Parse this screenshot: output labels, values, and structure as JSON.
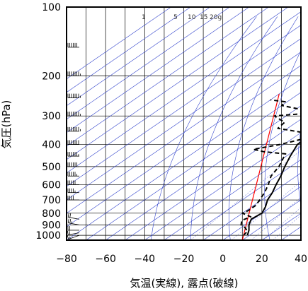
{
  "chart_data": {
    "type": "line",
    "xlabel": "気温(実線), 露点(破線)",
    "ylabel": "気圧(hPa)",
    "xlim": [
      -80,
      40
    ],
    "ylim": [
      1050,
      100
    ],
    "x_ticks": [
      -80,
      -60,
      -40,
      -20,
      0,
      20,
      40
    ],
    "x_tick_labels": [
      "−80",
      "−60",
      "−40",
      "−20",
      "0",
      "20",
      "40"
    ],
    "y_ticks": [
      100,
      200,
      300,
      400,
      500,
      600,
      700,
      800,
      900,
      1000
    ],
    "y_tick_labels": [
      "100",
      "200",
      "300",
      "400",
      "500",
      "600",
      "700",
      "800",
      "900",
      "1000"
    ],
    "mixing_ratio_labels": [
      "1",
      "5",
      "10",
      "15",
      "20g"
    ],
    "mixing_ratio_values": [
      1,
      5,
      10,
      15,
      20
    ],
    "colors": {
      "grid": "#000000",
      "isotherm": "#3344cc",
      "adiabat": "#3344cc",
      "reference_line": "#ff0000",
      "profile": "#000000",
      "frame": "#000000"
    },
    "series": [
      {
        "name": "気温",
        "style": "solid",
        "points": [
          {
            "p": 1000,
            "t": 9
          },
          {
            "p": 950,
            "t": 6
          },
          {
            "p": 900,
            "t": 2
          },
          {
            "p": 850,
            "t": -1
          },
          {
            "p": 800,
            "t": 0
          },
          {
            "p": 750,
            "t": -3
          },
          {
            "p": 700,
            "t": -7
          },
          {
            "p": 650,
            "t": -10
          },
          {
            "p": 600,
            "t": -14
          },
          {
            "p": 550,
            "t": -18
          },
          {
            "p": 500,
            "t": -23
          },
          {
            "p": 450,
            "t": -28
          },
          {
            "p": 400,
            "t": -33
          },
          {
            "p": 370,
            "t": -33
          },
          {
            "p": 350,
            "t": -37
          },
          {
            "p": 300,
            "t": -44
          },
          {
            "p": 250,
            "t": -51
          },
          {
            "p": 200,
            "t": -56
          },
          {
            "p": 180,
            "t": -60
          },
          {
            "p": 150,
            "t": -61
          },
          {
            "p": 130,
            "t": -60
          },
          {
            "p": 115,
            "t": -63
          },
          {
            "p": 100,
            "t": -62
          }
        ]
      },
      {
        "name": "露点",
        "style": "dashed",
        "points": [
          {
            "p": 1000,
            "t": 7
          },
          {
            "p": 960,
            "t": 6
          },
          {
            "p": 925,
            "t": 2
          },
          {
            "p": 900,
            "t": -2
          },
          {
            "p": 860,
            "t": -5
          },
          {
            "p": 830,
            "t": -3
          },
          {
            "p": 800,
            "t": -10
          },
          {
            "p": 780,
            "t": -9
          },
          {
            "p": 740,
            "t": -9
          },
          {
            "p": 700,
            "t": -11
          },
          {
            "p": 650,
            "t": -14
          },
          {
            "p": 600,
            "t": -18
          },
          {
            "p": 550,
            "t": -23
          },
          {
            "p": 500,
            "t": -26
          },
          {
            "p": 460,
            "t": -30
          },
          {
            "p": 440,
            "t": -32
          },
          {
            "p": 430,
            "t": -45
          },
          {
            "p": 420,
            "t": -52
          },
          {
            "p": 400,
            "t": -42
          },
          {
            "p": 380,
            "t": -35
          },
          {
            "p": 360,
            "t": -33
          },
          {
            "p": 340,
            "t": -55
          },
          {
            "p": 320,
            "t": -56
          },
          {
            "p": 300,
            "t": -66
          },
          {
            "p": 290,
            "t": -47
          },
          {
            "p": 270,
            "t": -70
          },
          {
            "p": 260,
            "t": -71
          },
          {
            "p": 255,
            "t": -80
          }
        ]
      }
    ],
    "reference_line": [
      {
        "p": 1050,
        "t": 10
      },
      {
        "p": 240,
        "t": -80
      }
    ],
    "wind_barbs": [
      {
        "p": 1000,
        "speed_kt": 15,
        "dir": 250
      },
      {
        "p": 975,
        "speed_kt": 20,
        "dir": 260
      },
      {
        "p": 950,
        "speed_kt": 20,
        "dir": 270
      },
      {
        "p": 900,
        "speed_kt": 25,
        "dir": 280
      },
      {
        "p": 850,
        "speed_kt": 20,
        "dir": 280
      },
      {
        "p": 700,
        "speed_kt": 40,
        "dir": 270
      },
      {
        "p": 650,
        "speed_kt": 45,
        "dir": 270
      },
      {
        "p": 600,
        "speed_kt": 50,
        "dir": 270
      },
      {
        "p": 550,
        "speed_kt": 55,
        "dir": 270
      },
      {
        "p": 500,
        "speed_kt": 60,
        "dir": 270
      },
      {
        "p": 450,
        "speed_kt": 65,
        "dir": 270
      },
      {
        "p": 400,
        "speed_kt": 70,
        "dir": 270
      },
      {
        "p": 350,
        "speed_kt": 80,
        "dir": 270
      },
      {
        "p": 300,
        "speed_kt": 90,
        "dir": 270
      },
      {
        "p": 250,
        "speed_kt": 100,
        "dir": 270
      },
      {
        "p": 200,
        "speed_kt": 90,
        "dir": 270
      },
      {
        "p": 150,
        "speed_kt": 60,
        "dir": 270
      },
      {
        "p": 100,
        "speed_kt": 35,
        "dir": 270
      }
    ]
  }
}
